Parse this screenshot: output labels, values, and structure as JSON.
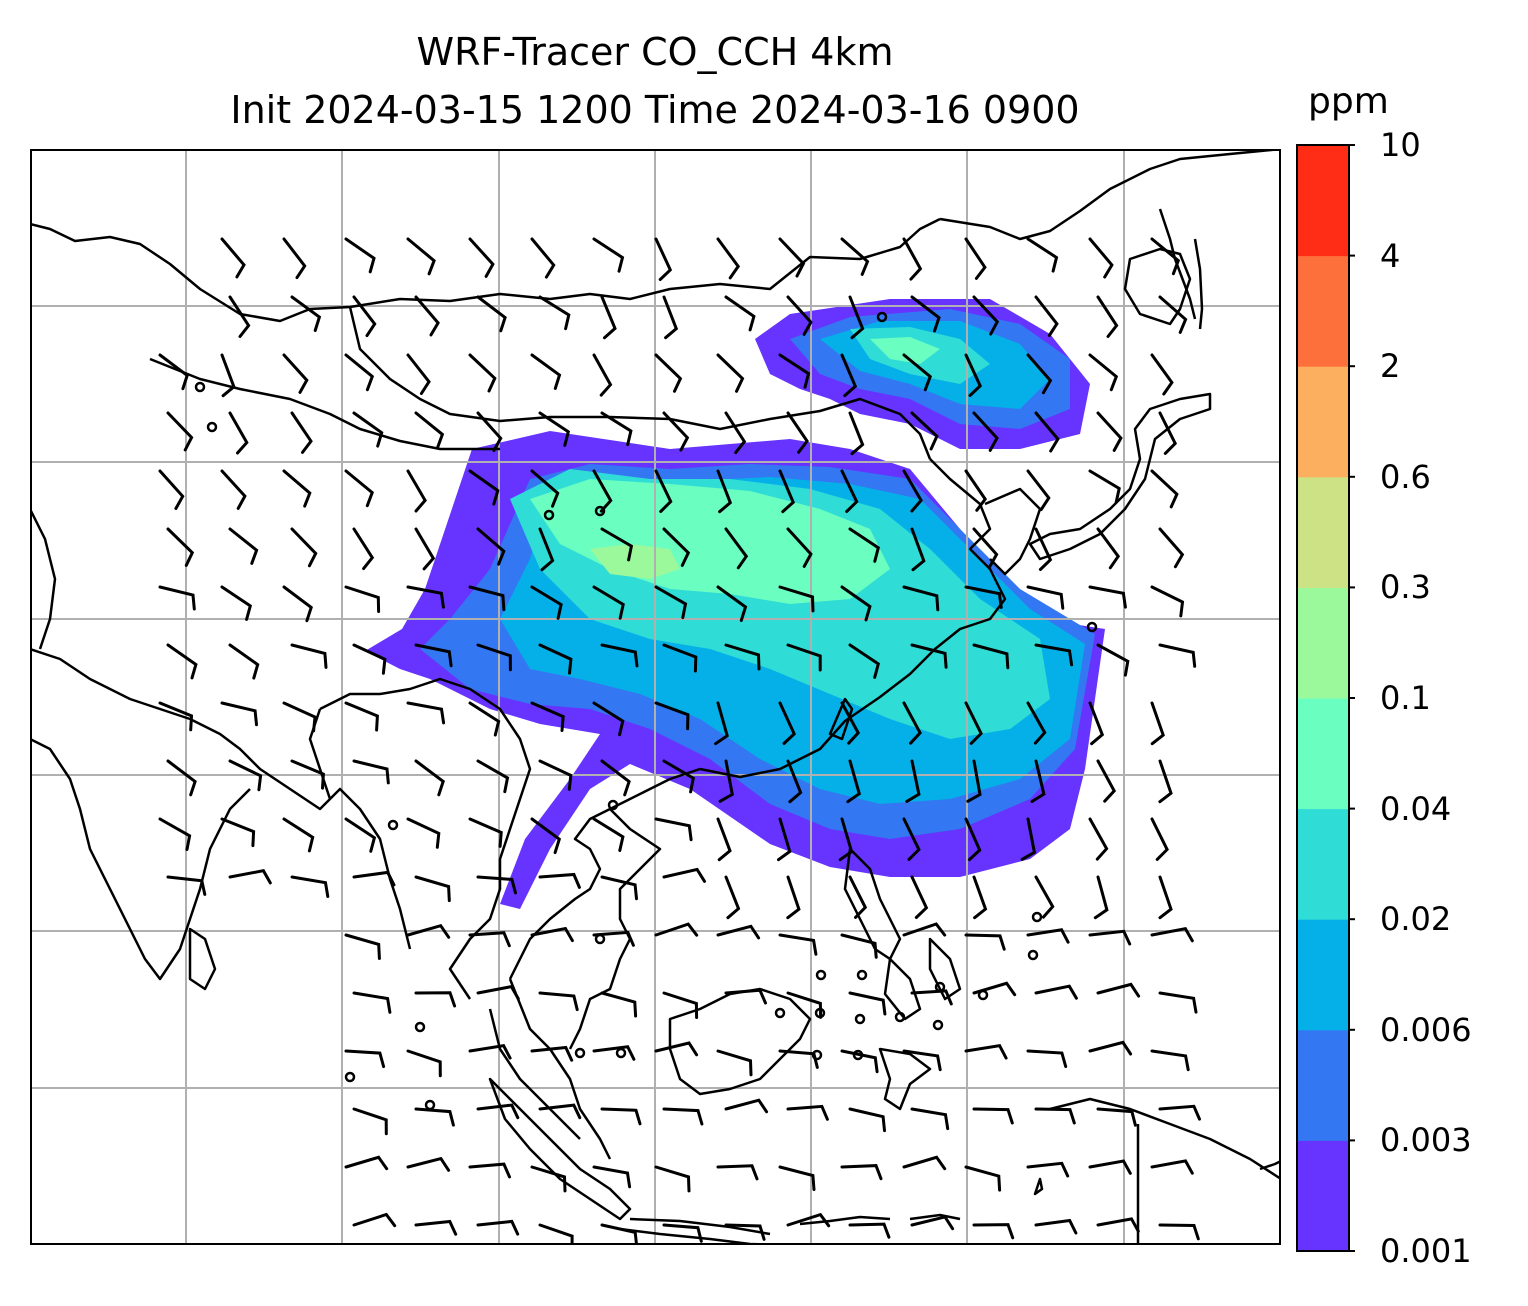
{
  "title": {
    "line1": "WRF-Tracer CO_CCH 4km",
    "line2": "Init 2024-03-15 1200 Time 2024-03-16 0900"
  },
  "colorbar": {
    "unit": "ppm",
    "levels": [
      "0.001",
      "0.003",
      "0.006",
      "0.02",
      "0.04",
      "0.1",
      "0.3",
      "0.6",
      "2",
      "4",
      "10"
    ],
    "colors": [
      "#6633ff",
      "#3377f2",
      "#05b0e8",
      "#30ddd6",
      "#6afec0",
      "#9bf99c",
      "#cde284",
      "#fcaf5f",
      "#fe703b",
      "#ff2c16"
    ]
  },
  "map": {
    "gridlines": true,
    "land_outline_color": "#000000",
    "gridline_color": "#b0b0b0",
    "calm_marker": "circle",
    "wind_barbs": true
  }
}
